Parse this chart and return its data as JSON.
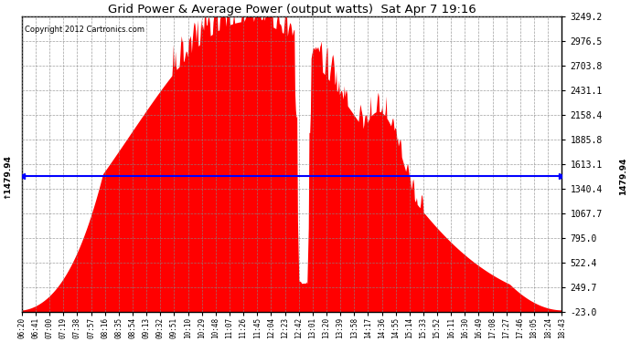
{
  "title": "Grid Power & Average Power (output watts)  Sat Apr 7 19:16",
  "copyright": "Copyright 2012 Cartronics.com",
  "avg_line_value": 1479.94,
  "ylim_min": -23.0,
  "ylim_max": 3249.2,
  "yticks": [
    -23.0,
    249.7,
    522.4,
    795.0,
    1067.7,
    1340.4,
    1613.1,
    1885.8,
    2158.4,
    2431.1,
    2703.8,
    2976.5,
    3249.2
  ],
  "fill_color": "#FF0000",
  "line_color": "#0000FF",
  "background_color": "#FFFFFF",
  "grid_color": "#888888",
  "xtick_labels": [
    "06:20",
    "06:41",
    "07:00",
    "07:19",
    "07:38",
    "07:57",
    "08:16",
    "08:35",
    "08:54",
    "09:13",
    "09:32",
    "09:51",
    "10:10",
    "10:29",
    "10:48",
    "11:07",
    "11:26",
    "11:45",
    "12:04",
    "12:23",
    "12:42",
    "13:01",
    "13:20",
    "13:39",
    "13:58",
    "14:17",
    "14:36",
    "14:55",
    "15:14",
    "15:33",
    "15:52",
    "16:11",
    "16:30",
    "16:49",
    "17:08",
    "17:27",
    "17:46",
    "18:05",
    "18:24",
    "18:43"
  ]
}
